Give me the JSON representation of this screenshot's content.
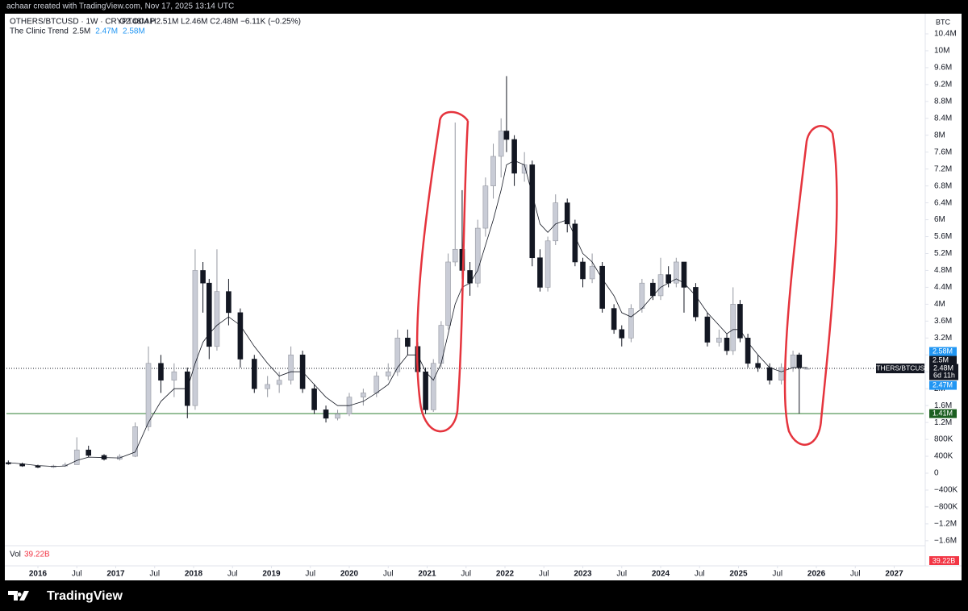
{
  "header": {
    "attribution": "achaar created with TradingView.com, Nov 17, 2025 13:14 UTC"
  },
  "footer": {
    "brand": "TradingView"
  },
  "chart_data": {
    "type": "candlestick",
    "title": "OTHERS/BTCUSD · 1W · CRYPTOCAP",
    "subtitle": "O2.48M H2.51M L2.46M C2.48M −6.11K (−0.25%)",
    "scale_unit": "BTC",
    "countdown": "6d 11h",
    "volume": {
      "label": "Vol",
      "value_text": "39.22B"
    },
    "x": [
      2015.62,
      2015.8,
      2016.0,
      2016.2,
      2016.35,
      2016.5,
      2016.65,
      2016.85,
      2017.05,
      2017.25,
      2017.42,
      2017.58,
      2017.75,
      2017.92,
      2018.02,
      2018.12,
      2018.2,
      2018.3,
      2018.45,
      2018.6,
      2018.78,
      2018.95,
      2019.1,
      2019.25,
      2019.4,
      2019.55,
      2019.7,
      2019.85,
      2020.0,
      2020.18,
      2020.35,
      2020.5,
      2020.62,
      2020.75,
      2020.88,
      2020.98,
      2021.08,
      2021.18,
      2021.27,
      2021.36,
      2021.45,
      2021.55,
      2021.65,
      2021.75,
      2021.85,
      2021.95,
      2022.02,
      2022.12,
      2022.25,
      2022.35,
      2022.45,
      2022.55,
      2022.65,
      2022.8,
      2022.9,
      2023.0,
      2023.12,
      2023.25,
      2023.4,
      2023.5,
      2023.62,
      2023.76,
      2023.9,
      2024.0,
      2024.1,
      2024.2,
      2024.3,
      2024.45,
      2024.6,
      2024.75,
      2024.85,
      2024.93,
      2025.02,
      2025.12,
      2025.25,
      2025.4,
      2025.55,
      2025.7,
      2025.78,
      2025.88
    ],
    "series": [
      {
        "name": "OTHERS/BTCUSD",
        "up_color": "#c9ccd6",
        "down_color": "#131722",
        "open": [
          250000,
          220000,
          170000,
          140000,
          170000,
          200000,
          550000,
          420000,
          330000,
          400000,
          1100000,
          2600000,
          2200000,
          2400000,
          1600000,
          4800000,
          4500000,
          3000000,
          4300000,
          3800000,
          2700000,
          2000000,
          2100000,
          2200000,
          2800000,
          2000000,
          1500000,
          1300000,
          1400000,
          1800000,
          1900000,
          2300000,
          2400000,
          3200000,
          3000000,
          2400000,
          1500000,
          2600000,
          3500000,
          5000000,
          5300000,
          4800000,
          4500000,
          5800000,
          6800000,
          7500000,
          8100000,
          7900000,
          7100000,
          7300000,
          5100000,
          4400000,
          5500000,
          6400000,
          5900000,
          5000000,
          4600000,
          4900000,
          3900000,
          3400000,
          3200000,
          3900000,
          4500000,
          4200000,
          4700000,
          4500000,
          5000000,
          4400000,
          3700000,
          3100000,
          3200000,
          2900000,
          4000000,
          3200000,
          2600000,
          2500000,
          2200000,
          2500000,
          2800000,
          2480000
        ],
        "high": [
          300000,
          250000,
          200000,
          200000,
          250000,
          850000,
          650000,
          450000,
          450000,
          1200000,
          3000000,
          2800000,
          2600000,
          2500000,
          5300000,
          5000000,
          4600000,
          5300000,
          4600000,
          3900000,
          2800000,
          2300000,
          2400000,
          3000000,
          2900000,
          2100000,
          1600000,
          1500000,
          1900000,
          2000000,
          2400000,
          2600000,
          3400000,
          3400000,
          3100000,
          2500000,
          2700000,
          3600000,
          5200000,
          8300000,
          6700000,
          5000000,
          6000000,
          7000000,
          7800000,
          8400000,
          9400000,
          8000000,
          7600000,
          7400000,
          5300000,
          5600000,
          6600000,
          6500000,
          6000000,
          5100000,
          5200000,
          5000000,
          4000000,
          3500000,
          4000000,
          4600000,
          4600000,
          5100000,
          4900000,
          5100000,
          5000000,
          4500000,
          3800000,
          3400000,
          3300000,
          4400000,
          4100000,
          3300000,
          2800000,
          2600000,
          2600000,
          2900000,
          2850000,
          2510000
        ],
        "low": [
          200000,
          150000,
          120000,
          120000,
          150000,
          200000,
          380000,
          300000,
          300000,
          380000,
          1000000,
          1900000,
          1800000,
          1300000,
          1500000,
          3800000,
          2700000,
          2900000,
          3500000,
          2500000,
          1900000,
          1800000,
          1900000,
          2100000,
          1900000,
          1400000,
          1200000,
          1250000,
          1350000,
          1600000,
          1800000,
          2200000,
          2300000,
          2800000,
          2200000,
          1400000,
          1450000,
          2500000,
          3400000,
          4900000,
          4600000,
          4200000,
          4400000,
          5600000,
          6500000,
          7000000,
          7600000,
          6800000,
          6900000,
          4900000,
          4300000,
          4300000,
          5400000,
          5700000,
          4900000,
          4400000,
          4500000,
          3800000,
          3300000,
          3000000,
          3100000,
          3800000,
          4100000,
          4100000,
          4400000,
          4400000,
          3800000,
          3600000,
          3000000,
          3000000,
          2800000,
          2800000,
          3100000,
          2500000,
          2400000,
          2100000,
          2100000,
          2400000,
          1410000,
          2460000
        ],
        "close": [
          220000,
          170000,
          140000,
          170000,
          200000,
          550000,
          420000,
          330000,
          400000,
          1100000,
          2600000,
          2200000,
          2400000,
          1600000,
          4800000,
          4500000,
          3000000,
          4300000,
          3800000,
          2700000,
          2000000,
          2100000,
          2200000,
          2800000,
          2000000,
          1500000,
          1300000,
          1400000,
          1800000,
          1900000,
          2300000,
          2400000,
          3200000,
          3000000,
          2400000,
          1500000,
          2600000,
          3500000,
          5000000,
          5300000,
          4800000,
          4500000,
          5800000,
          6800000,
          7500000,
          8100000,
          7900000,
          7100000,
          7300000,
          5100000,
          4400000,
          5500000,
          6400000,
          5900000,
          5000000,
          4600000,
          4900000,
          3900000,
          3400000,
          3200000,
          3900000,
          4500000,
          4200000,
          4700000,
          4500000,
          5000000,
          4400000,
          3700000,
          3100000,
          3200000,
          2900000,
          4000000,
          3200000,
          2600000,
          2500000,
          2200000,
          2500000,
          2800000,
          2500000,
          2480000
        ]
      },
      {
        "name": "The Clinic Trend",
        "color": "#131722",
        "values": [
          250000,
          220000,
          180000,
          160000,
          170000,
          300000,
          380000,
          370000,
          360000,
          500000,
          1200000,
          1700000,
          2000000,
          2000000,
          2600000,
          3100000,
          3300000,
          3500000,
          3700000,
          3500000,
          3000000,
          2600000,
          2300000,
          2400000,
          2400000,
          2100000,
          1800000,
          1600000,
          1600000,
          1700000,
          1900000,
          2100000,
          2500000,
          2800000,
          2800000,
          2400000,
          2200000,
          2600000,
          3300000,
          4000000,
          4400000,
          4500000,
          4800000,
          5400000,
          6000000,
          6700000,
          7300000,
          7400000,
          7300000,
          6600000,
          5900000,
          5700000,
          5900000,
          6000000,
          5600000,
          5200000,
          5000000,
          4600000,
          4200000,
          3800000,
          3700000,
          3900000,
          4200000,
          4400000,
          4500000,
          4600000,
          4500000,
          4200000,
          3800000,
          3500000,
          3300000,
          3400000,
          3400000,
          3100000,
          2800000,
          2500000,
          2400000,
          2500000,
          2500000,
          2500000
        ],
        "legend_values": [
          {
            "value": 2500000,
            "label": "2.5M",
            "color": "#131722"
          },
          {
            "value": 2470000,
            "label": "2.47M",
            "color": "#2196f3"
          },
          {
            "value": 2580000,
            "label": "2.58M",
            "color": "#2196f3"
          }
        ]
      }
    ],
    "last_price": {
      "value": 2480000,
      "label": "2.48M"
    },
    "hline": {
      "value": 1410000,
      "label": "1.41M",
      "color": "#2e7d32"
    },
    "xlim": [
      2015.596,
      2027.378
    ],
    "xticks": [
      2016,
      {
        "value": 2016.5,
        "label": "Jul"
      },
      2017,
      {
        "value": 2017.5,
        "label": "Jul"
      },
      2018,
      {
        "value": 2018.5,
        "label": "Jul"
      },
      2019,
      {
        "value": 2019.5,
        "label": "Jul"
      },
      2020,
      {
        "value": 2020.5,
        "label": "Jul"
      },
      2021,
      {
        "value": 2021.5,
        "label": "Jul"
      },
      2022,
      {
        "value": 2022.5,
        "label": "Jul"
      },
      2023,
      {
        "value": 2023.5,
        "label": "Jul"
      },
      2024,
      {
        "value": 2024.5,
        "label": "Jul"
      },
      2025,
      {
        "value": 2025.5,
        "label": "Jul"
      },
      2026,
      {
        "value": 2026.5,
        "label": "Jul"
      },
      2027
    ],
    "ylim": [
      -1679000,
      10877000
    ],
    "yticks": [
      {
        "value": -1600000,
        "label": "−1.6M"
      },
      {
        "value": -1200000,
        "label": "−1.2M"
      },
      {
        "value": -800000,
        "label": "−800K"
      },
      {
        "value": -400000,
        "label": "−400K"
      },
      0,
      {
        "value": 400000,
        "label": "400K"
      },
      {
        "value": 800000,
        "label": "800K"
      },
      {
        "value": 1200000,
        "label": "1.2M"
      },
      {
        "value": 1600000,
        "label": "1.6M"
      },
      {
        "value": 2000000,
        "label": "2M"
      },
      {
        "value": 2400000,
        "label": "2.4M"
      },
      {
        "value": 2800000,
        "label": "2.8M"
      },
      {
        "value": 3200000,
        "label": "3.2M"
      },
      {
        "value": 3600000,
        "label": "3.6M"
      },
      {
        "value": 4000000,
        "label": "4M"
      },
      {
        "value": 4400000,
        "label": "4.4M"
      },
      {
        "value": 4800000,
        "label": "4.8M"
      },
      {
        "value": 5200000,
        "label": "5.2M"
      },
      {
        "value": 5600000,
        "label": "5.6M"
      },
      {
        "value": 6000000,
        "label": "6M"
      },
      {
        "value": 6400000,
        "label": "6.4M"
      },
      {
        "value": 6800000,
        "label": "6.8M"
      },
      {
        "value": 7200000,
        "label": "7.2M"
      },
      {
        "value": 7600000,
        "label": "7.6M"
      },
      {
        "value": 8000000,
        "label": "8M"
      },
      {
        "value": 8400000,
        "label": "8.4M"
      },
      {
        "value": 8800000,
        "label": "8.8M"
      },
      {
        "value": 9200000,
        "label": "9.2M"
      },
      {
        "value": 9600000,
        "label": "9.6M"
      },
      {
        "value": 10000000,
        "label": "10M"
      },
      {
        "value": 10400000,
        "label": "10.4M"
      }
    ],
    "grid": false
  }
}
